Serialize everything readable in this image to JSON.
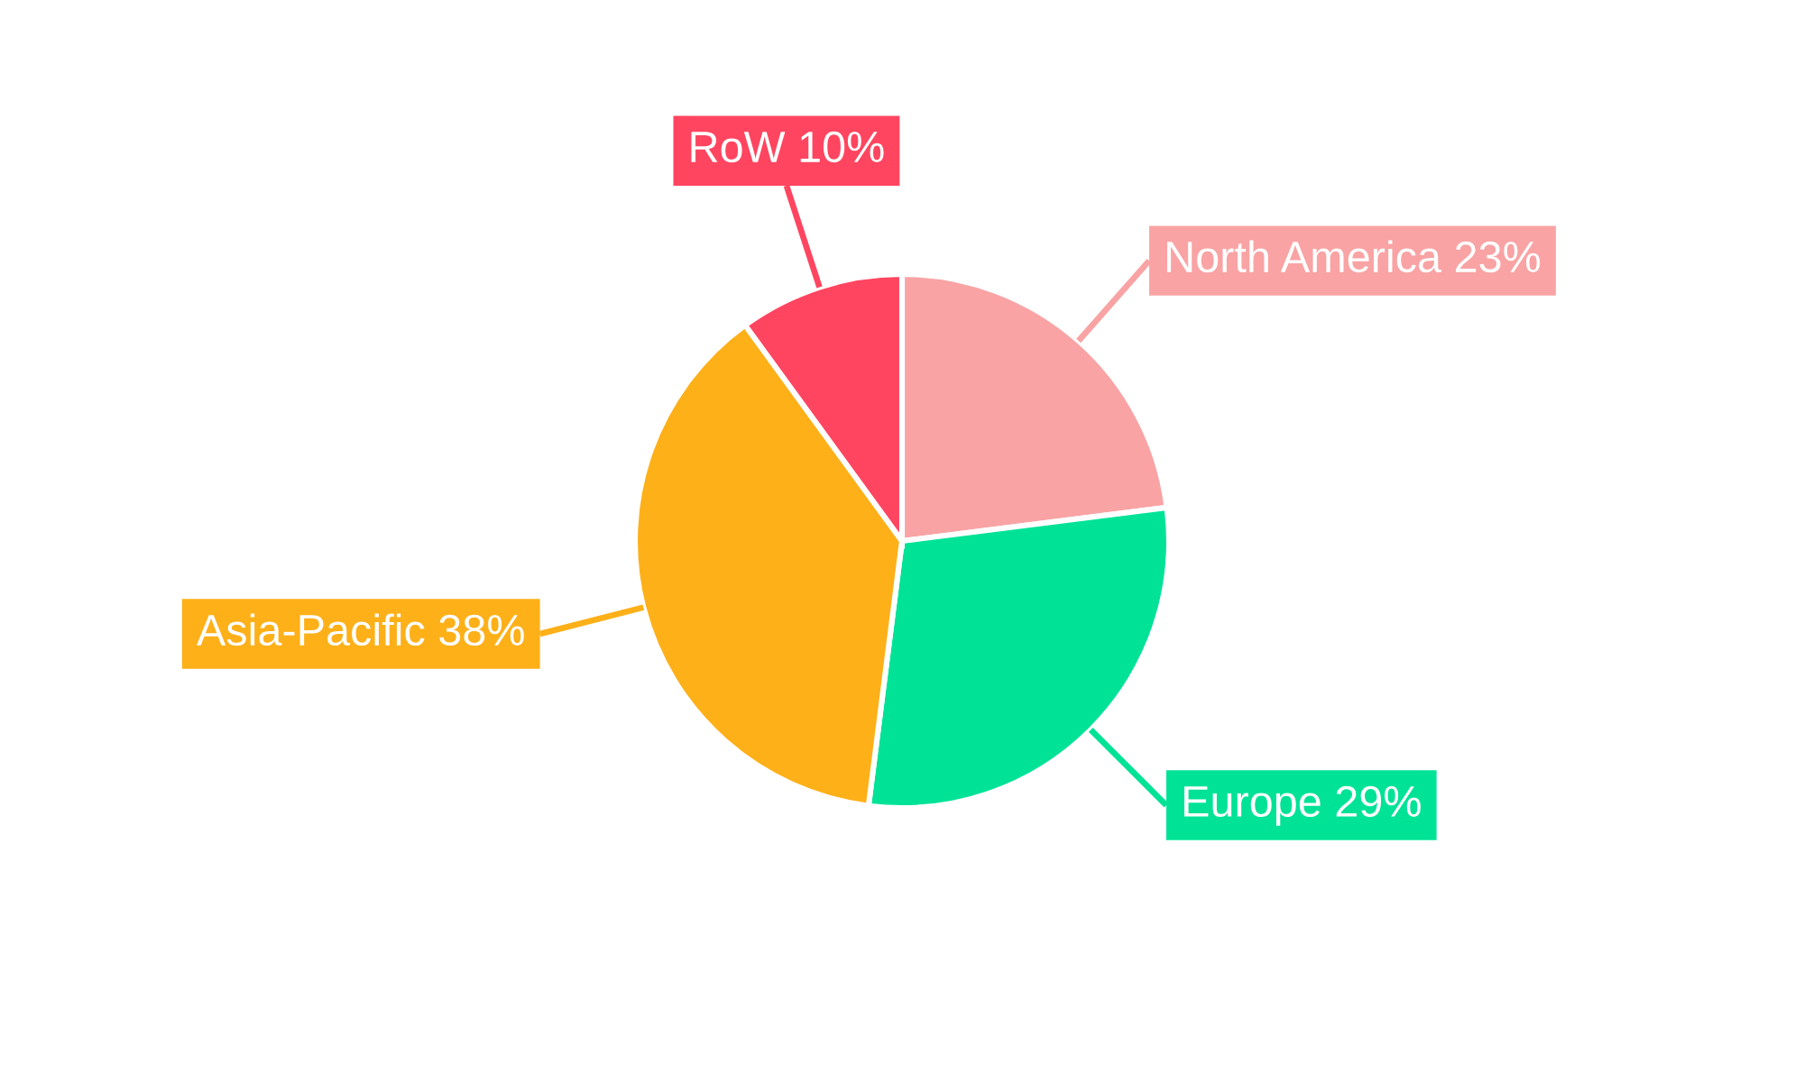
{
  "chart_data": {
    "type": "pie",
    "categories": [
      "North America",
      "Europe",
      "Asia-Pacific",
      "RoW"
    ],
    "values": [
      23,
      29,
      38,
      10
    ],
    "value_labels": [
      "23%",
      "29%",
      "38%",
      "10%"
    ],
    "colors": [
      "#f9a3a4",
      "#00e396",
      "#feb019",
      "#ff4560"
    ],
    "legend": false
  }
}
